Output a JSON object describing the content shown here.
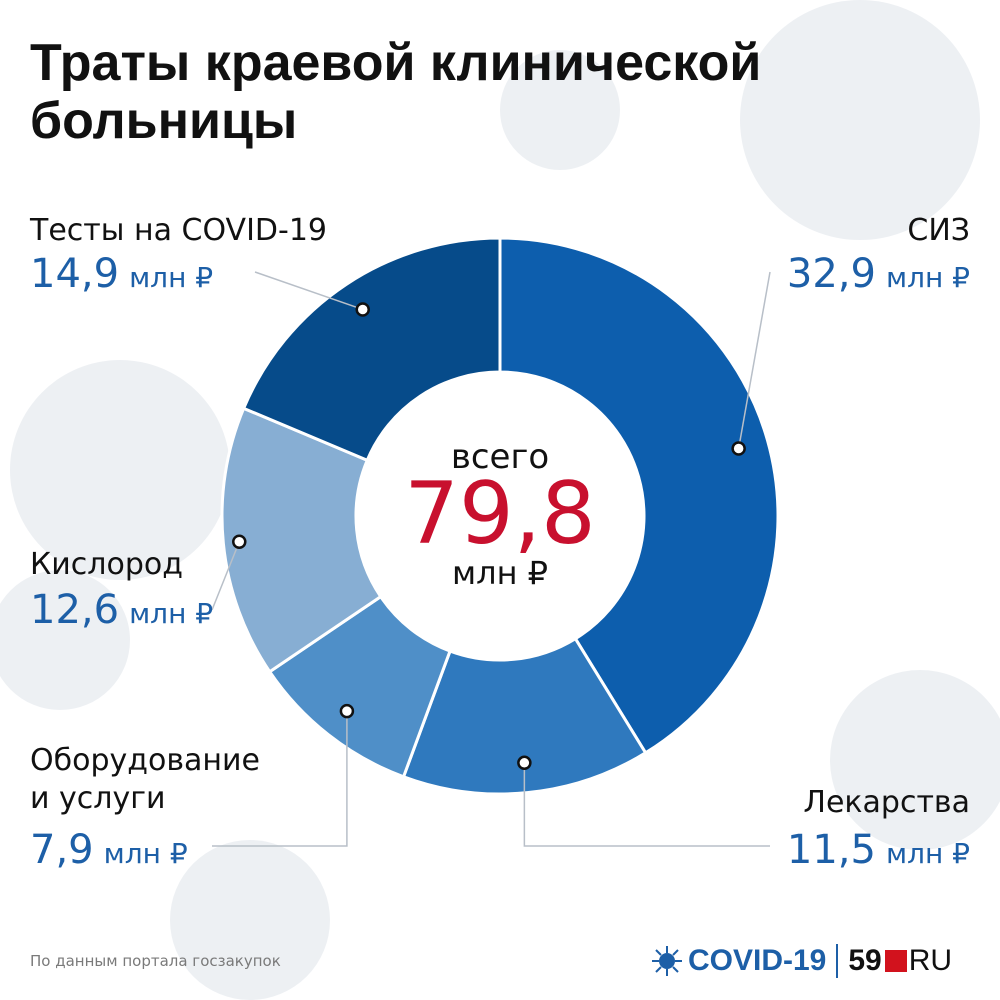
{
  "title": "Траты краевой клинической больницы",
  "center": {
    "top": "всего",
    "value": "79,8",
    "unit": "млн ₽"
  },
  "source": "По данным портала госзакупок",
  "brand": {
    "covid": "COVID-19",
    "num": "59",
    "ru": "RU"
  },
  "colors": {
    "accent_red": "#c8102e",
    "value_blue": "#1d5fa7"
  },
  "chart_data": {
    "type": "pie",
    "total": 79.8,
    "unit": "млн ₽",
    "slices": [
      {
        "label": "СИЗ",
        "value": 32.9,
        "value_text": "32,9",
        "color": "#0d5ead"
      },
      {
        "label": "Лекарства",
        "value": 11.5,
        "value_text": "11,5",
        "color": "#2f79be"
      },
      {
        "label": "Оборудование и услуги",
        "label_lines": [
          "Оборудование",
          "и услуги"
        ],
        "value": 7.9,
        "value_text": "7,9",
        "color": "#4f8fc8"
      },
      {
        "label": "Кислород",
        "value": 12.6,
        "value_text": "12,6",
        "color": "#87aed3"
      },
      {
        "label": "Тесты на COVID-19",
        "value": 14.9,
        "value_text": "14,9",
        "color": "#064b8a"
      }
    ]
  }
}
